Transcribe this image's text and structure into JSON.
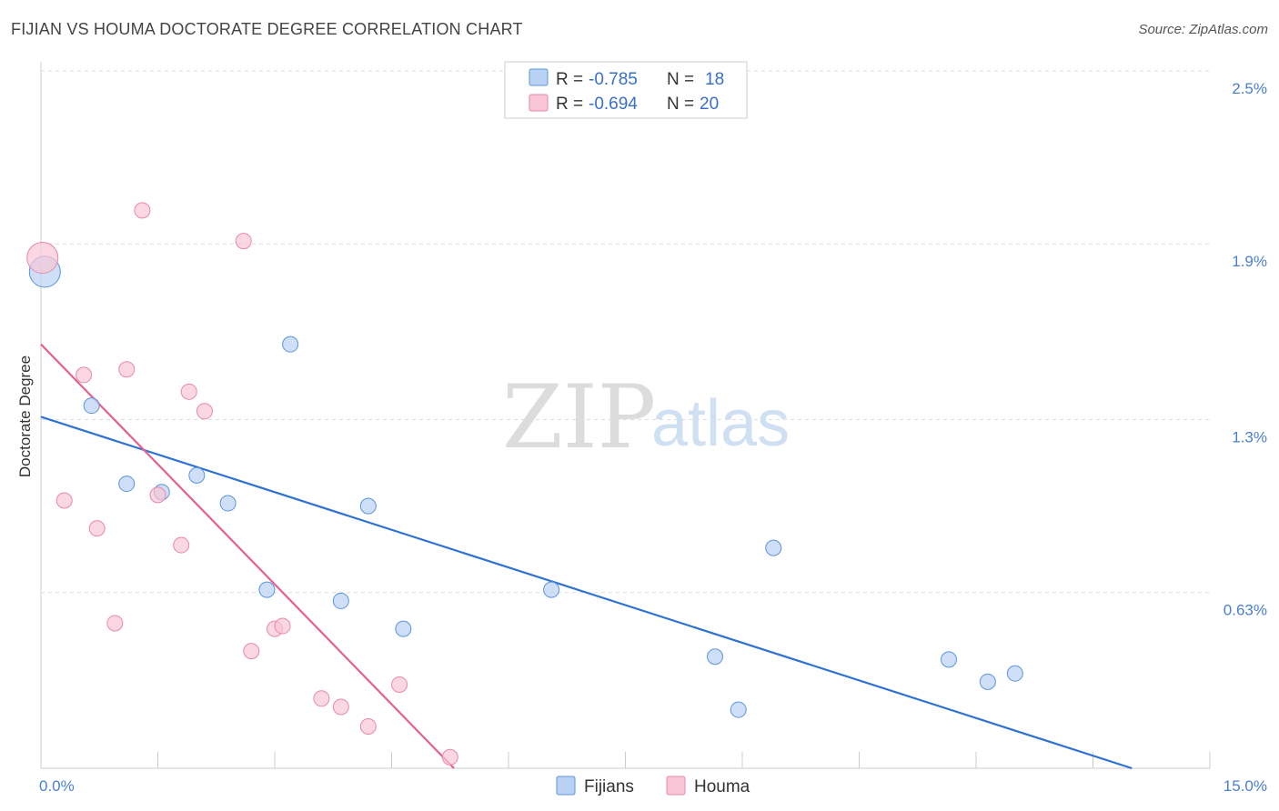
{
  "header": {
    "title": "FIJIAN VS HOUMA DOCTORATE DEGREE CORRELATION CHART",
    "source": "Source: ZipAtlas.com"
  },
  "watermark": {
    "zip": "ZIP",
    "atlas": "atlas"
  },
  "colors": {
    "fijians_fill": "#b9d2f3",
    "fijians_stroke": "#5b95dc",
    "fijians_line": "#2f72d4",
    "houma_fill": "#f8c6d6",
    "houma_stroke": "#e889a8",
    "houma_line": "#e5608d",
    "grid": "#dddddd",
    "tick_text": "#4a7fd0"
  },
  "legend": {
    "fijians": {
      "r_label": "R = ",
      "r_value": "-0.785",
      "n_label": "N = ",
      "n_value": "18"
    },
    "houma": {
      "r_label": "R = ",
      "r_value": "-0.694",
      "n_label": "N = ",
      "n_value": "20"
    }
  },
  "chart_data": {
    "type": "scatter",
    "title": "FIJIAN VS HOUMA DOCTORATE DEGREE CORRELATION CHART",
    "xlabel": "",
    "ylabel": "Doctorate Degree",
    "xlim": [
      0,
      15
    ],
    "ylim": [
      0,
      2.5
    ],
    "x_tick_labels": [
      {
        "value": 0,
        "label": "0.0%"
      },
      {
        "value": 15,
        "label": "15.0%"
      }
    ],
    "y_tick_labels": [
      {
        "value": 2.5,
        "label": "2.5%"
      },
      {
        "value": 1.88,
        "label": "1.9%"
      },
      {
        "value": 1.25,
        "label": "1.3%"
      },
      {
        "value": 0.63,
        "label": "0.63%"
      }
    ],
    "grid": true,
    "legend_position": "top-center",
    "series": [
      {
        "name": "Fijians",
        "points": [
          {
            "x": 0.05,
            "y": 1.78,
            "size": "large"
          },
          {
            "x": 0.65,
            "y": 1.3
          },
          {
            "x": 1.1,
            "y": 1.02
          },
          {
            "x": 1.55,
            "y": 0.99
          },
          {
            "x": 2.0,
            "y": 1.05
          },
          {
            "x": 2.4,
            "y": 0.95
          },
          {
            "x": 2.9,
            "y": 0.64
          },
          {
            "x": 3.2,
            "y": 1.52
          },
          {
            "x": 3.85,
            "y": 0.6
          },
          {
            "x": 4.2,
            "y": 0.94
          },
          {
            "x": 4.65,
            "y": 0.5
          },
          {
            "x": 6.55,
            "y": 0.64
          },
          {
            "x": 8.65,
            "y": 0.4
          },
          {
            "x": 8.95,
            "y": 0.21
          },
          {
            "x": 9.4,
            "y": 0.79
          },
          {
            "x": 11.65,
            "y": 0.39
          },
          {
            "x": 12.15,
            "y": 0.31
          },
          {
            "x": 12.5,
            "y": 0.34
          }
        ],
        "trend": {
          "x1": 0,
          "y1": 1.26,
          "x2": 14.0,
          "y2": 0.0
        }
      },
      {
        "name": "Houma",
        "points": [
          {
            "x": 0.02,
            "y": 1.83,
            "size": "large"
          },
          {
            "x": 0.3,
            "y": 0.96
          },
          {
            "x": 0.55,
            "y": 1.41
          },
          {
            "x": 0.72,
            "y": 0.86
          },
          {
            "x": 0.95,
            "y": 0.52
          },
          {
            "x": 1.1,
            "y": 1.43
          },
          {
            "x": 1.3,
            "y": 2.0
          },
          {
            "x": 1.5,
            "y": 0.98
          },
          {
            "x": 1.8,
            "y": 0.8
          },
          {
            "x": 1.9,
            "y": 1.35
          },
          {
            "x": 2.1,
            "y": 1.28
          },
          {
            "x": 2.6,
            "y": 1.89
          },
          {
            "x": 2.7,
            "y": 0.42
          },
          {
            "x": 3.0,
            "y": 0.5
          },
          {
            "x": 3.1,
            "y": 0.51
          },
          {
            "x": 3.6,
            "y": 0.25
          },
          {
            "x": 3.85,
            "y": 0.22
          },
          {
            "x": 4.2,
            "y": 0.15
          },
          {
            "x": 4.6,
            "y": 0.3
          },
          {
            "x": 5.25,
            "y": 0.04
          }
        ],
        "trend": {
          "x1": 0,
          "y1": 1.52,
          "x2": 5.3,
          "y2": 0.0
        }
      }
    ]
  }
}
